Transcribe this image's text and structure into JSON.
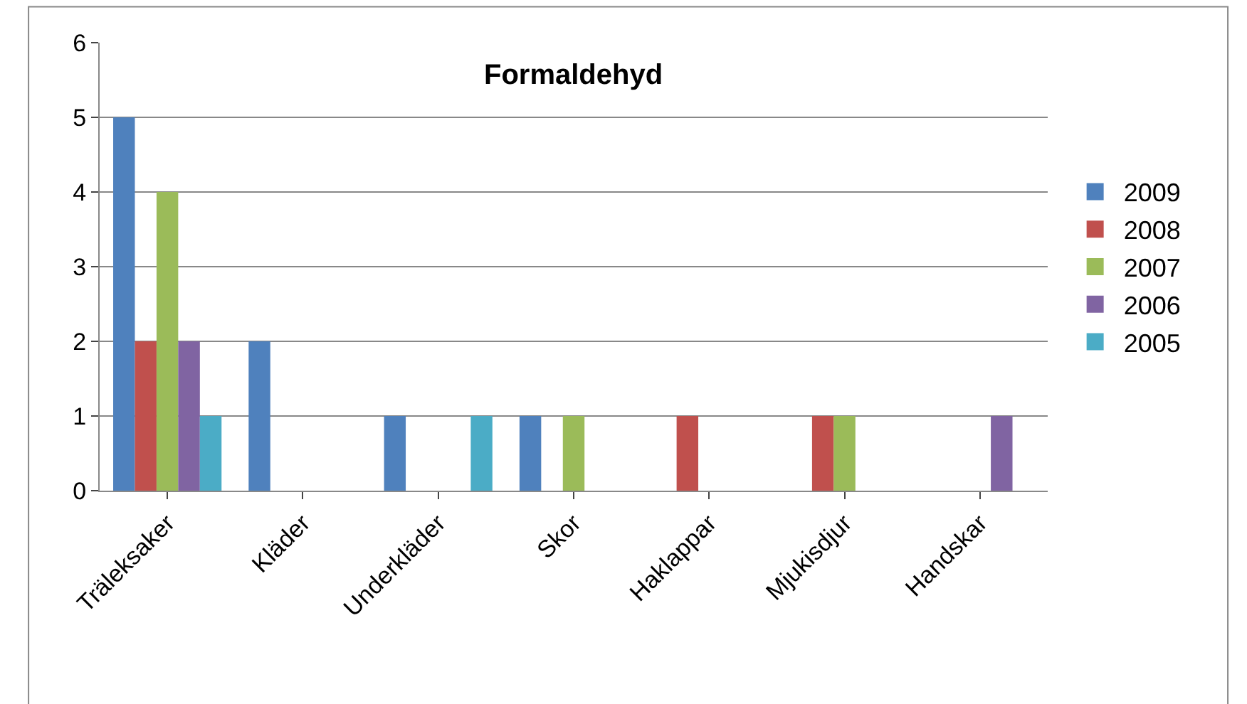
{
  "chart_data": {
    "type": "bar",
    "title": "Formaldehyd",
    "categories": [
      "Träleksaker",
      "Kläder",
      "Underkläder",
      "Skor",
      "Haklappar",
      "Mjukisdjur",
      "Handskar"
    ],
    "series": [
      {
        "name": "2009",
        "color": "#4f81bd",
        "values": [
          5,
          2,
          1,
          1,
          0,
          0,
          0
        ]
      },
      {
        "name": "2008",
        "color": "#c0504d",
        "values": [
          2,
          0,
          0,
          0,
          1,
          1,
          0
        ]
      },
      {
        "name": "2007",
        "color": "#9bbb59",
        "values": [
          4,
          0,
          0,
          1,
          0,
          1,
          0
        ]
      },
      {
        "name": "2006",
        "color": "#8064a2",
        "values": [
          2,
          0,
          0,
          0,
          0,
          0,
          1
        ]
      },
      {
        "name": "2005",
        "color": "#4bacc6",
        "values": [
          1,
          0,
          1,
          0,
          0,
          0,
          0
        ]
      }
    ],
    "ylim": [
      0,
      6
    ],
    "yticks": [
      0,
      1,
      2,
      3,
      4,
      5,
      6
    ],
    "grid": "y",
    "legend": "right"
  }
}
